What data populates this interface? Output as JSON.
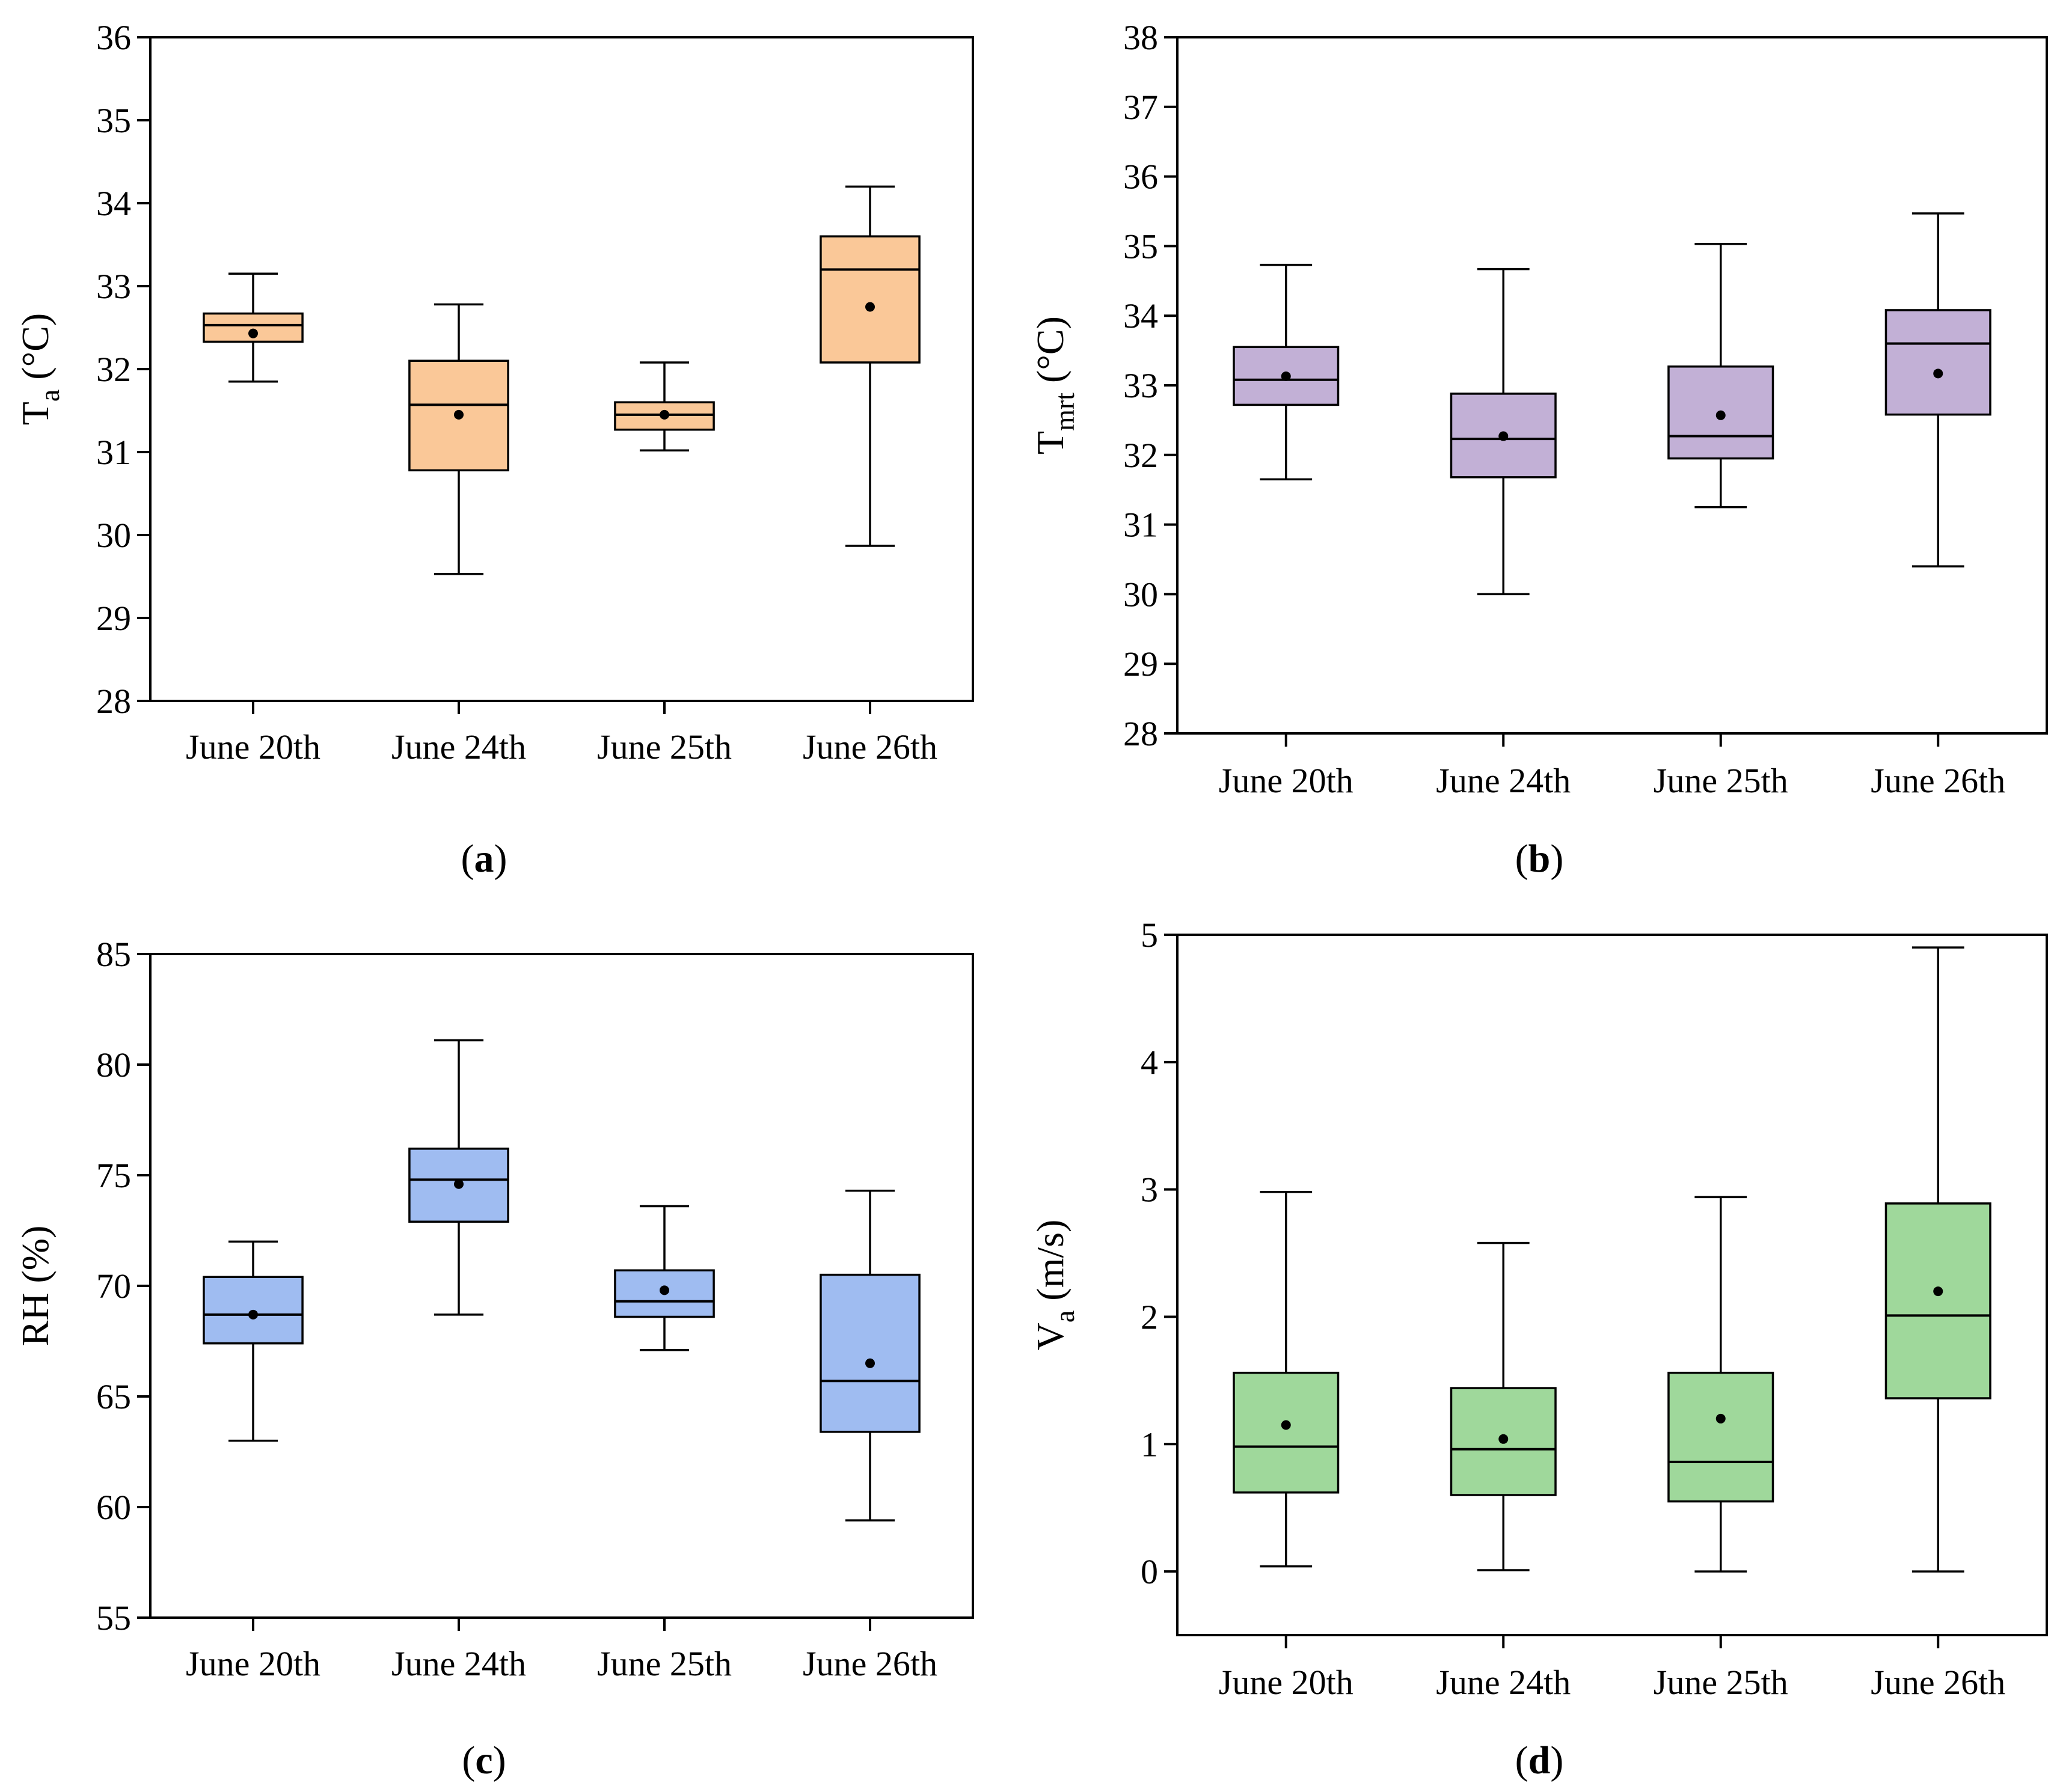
{
  "chart_data": [
    {
      "type": "box",
      "panel_label": "a",
      "ylabel": {
        "base": "T",
        "sub": "a",
        "unit": " (°C)"
      },
      "ylim": [
        28,
        36
      ],
      "yticks": [
        28,
        29,
        30,
        31,
        32,
        33,
        34,
        35,
        36
      ],
      "categories": [
        "June 20th",
        "June 24th",
        "June 25th",
        "June 26th"
      ],
      "box_color": "#fac898",
      "boxes": [
        {
          "min": 31.85,
          "q1": 32.33,
          "median": 32.53,
          "q3": 32.67,
          "max": 33.15,
          "mean": 32.43
        },
        {
          "min": 29.53,
          "q1": 30.78,
          "median": 31.57,
          "q3": 32.1,
          "max": 32.78,
          "mean": 31.45
        },
        {
          "min": 31.02,
          "q1": 31.27,
          "median": 31.45,
          "q3": 31.6,
          "max": 32.08,
          "mean": 31.45
        },
        {
          "min": 29.87,
          "q1": 32.08,
          "median": 33.2,
          "q3": 33.6,
          "max": 34.2,
          "mean": 32.75
        }
      ]
    },
    {
      "type": "box",
      "panel_label": "b",
      "ylabel": {
        "base": "T",
        "sub": "mrt",
        "unit": " (°C)"
      },
      "ylim": [
        28,
        38
      ],
      "yticks": [
        28,
        29,
        30,
        31,
        32,
        33,
        34,
        35,
        36,
        37,
        38
      ],
      "categories": [
        "June 20th",
        "June 24th",
        "June 25th",
        "June 26th"
      ],
      "box_color": "#c2b0d6",
      "boxes": [
        {
          "min": 31.65,
          "q1": 32.72,
          "median": 33.08,
          "q3": 33.55,
          "max": 34.73,
          "mean": 33.13
        },
        {
          "min": 30.0,
          "q1": 31.68,
          "median": 32.23,
          "q3": 32.88,
          "max": 34.67,
          "mean": 32.27
        },
        {
          "min": 31.25,
          "q1": 31.95,
          "median": 32.27,
          "q3": 33.27,
          "max": 35.03,
          "mean": 32.57
        },
        {
          "min": 30.4,
          "q1": 32.58,
          "median": 33.6,
          "q3": 34.08,
          "max": 35.47,
          "mean": 33.17
        }
      ]
    },
    {
      "type": "box",
      "panel_label": "c",
      "ylabel": {
        "base": "RH (%)",
        "sub": "",
        "unit": ""
      },
      "ylim": [
        55,
        85
      ],
      "yticks": [
        55,
        60,
        65,
        70,
        75,
        80,
        85
      ],
      "categories": [
        "June 20th",
        "June 24th",
        "June 25th",
        "June 26th"
      ],
      "box_color": "#9fbcf1",
      "boxes": [
        {
          "min": 63.0,
          "q1": 67.4,
          "median": 68.7,
          "q3": 70.4,
          "max": 72.0,
          "mean": 68.7
        },
        {
          "min": 68.7,
          "q1": 72.9,
          "median": 74.8,
          "q3": 76.2,
          "max": 81.1,
          "mean": 74.6
        },
        {
          "min": 67.1,
          "q1": 68.6,
          "median": 69.3,
          "q3": 70.7,
          "max": 73.6,
          "mean": 69.8
        },
        {
          "min": 59.4,
          "q1": 63.4,
          "median": 65.7,
          "q3": 70.5,
          "max": 74.3,
          "mean": 66.5
        }
      ]
    },
    {
      "type": "box",
      "panel_label": "d",
      "ylabel": {
        "base": "V",
        "sub": "a",
        "unit": " (m/s)"
      },
      "ylim": [
        -0.5,
        5
      ],
      "yticks": [
        0,
        1,
        2,
        3,
        4,
        5
      ],
      "categories": [
        "June 20th",
        "June 24th",
        "June 25th",
        "June 26th"
      ],
      "box_color": "#9fd89b",
      "boxes": [
        {
          "min": 0.04,
          "q1": 0.62,
          "median": 0.98,
          "q3": 1.56,
          "max": 2.98,
          "mean": 1.15
        },
        {
          "min": 0.01,
          "q1": 0.6,
          "median": 0.96,
          "q3": 1.44,
          "max": 2.58,
          "mean": 1.04
        },
        {
          "min": 0.0,
          "q1": 0.55,
          "median": 0.86,
          "q3": 1.56,
          "max": 2.94,
          "mean": 1.2
        },
        {
          "min": 0.0,
          "q1": 1.36,
          "median": 2.01,
          "q3": 2.89,
          "max": 4.9,
          "mean": 2.2
        }
      ]
    }
  ]
}
